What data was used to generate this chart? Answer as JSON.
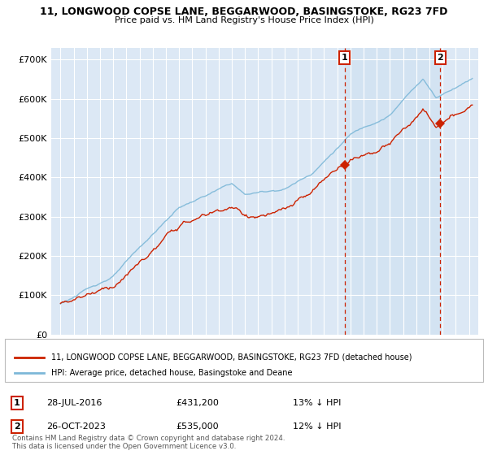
{
  "title": "11, LONGWOOD COPSE LANE, BEGGARWOOD, BASINGSTOKE, RG23 7FD",
  "subtitle": "Price paid vs. HM Land Registry's House Price Index (HPI)",
  "ylabel_ticks": [
    "£0",
    "£100K",
    "£200K",
    "£300K",
    "£400K",
    "£500K",
    "£600K",
    "£700K"
  ],
  "ytick_vals": [
    0,
    100000,
    200000,
    300000,
    400000,
    500000,
    600000,
    700000
  ],
  "ylim": [
    0,
    730000
  ],
  "hpi_color": "#7db8d8",
  "price_color": "#cc2200",
  "sale1_date": "28-JUL-2016",
  "sale1_price": 431200,
  "sale1_pct": "13% ↓ HPI",
  "sale2_date": "26-OCT-2023",
  "sale2_price": 535000,
  "sale2_pct": "12% ↓ HPI",
  "legend_label1": "11, LONGWOOD COPSE LANE, BEGGARWOOD, BASINGSTOKE, RG23 7FD (detached house)",
  "legend_label2": "HPI: Average price, detached house, Basingstoke and Deane",
  "footnote": "Contains HM Land Registry data © Crown copyright and database right 2024.\nThis data is licensed under the Open Government Licence v3.0.",
  "bg_color": "#dce8f5",
  "bg_color_highlight": "#ccdff0",
  "grid_color": "#ffffff",
  "sale1_year": 2016.56,
  "sale2_year": 2023.82,
  "xlim_left": 1994.3,
  "xlim_right": 2026.7
}
